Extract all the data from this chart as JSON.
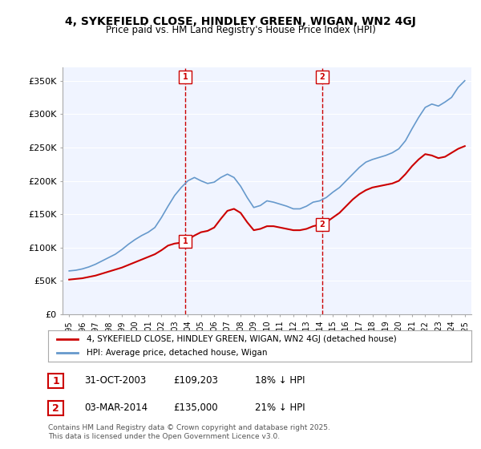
{
  "title": "4, SYKEFIELD CLOSE, HINDLEY GREEN, WIGAN, WN2 4GJ",
  "subtitle": "Price paid vs. HM Land Registry's House Price Index (HPI)",
  "ylabel_ticks": [
    "£0",
    "£50K",
    "£100K",
    "£150K",
    "£200K",
    "£250K",
    "£300K",
    "£350K"
  ],
  "ytick_values": [
    0,
    50000,
    100000,
    150000,
    200000,
    250000,
    300000,
    350000
  ],
  "ylim": [
    0,
    370000
  ],
  "legend_line1": "4, SYKEFIELD CLOSE, HINDLEY GREEN, WIGAN, WN2 4GJ (detached house)",
  "legend_line2": "HPI: Average price, detached house, Wigan",
  "marker1_date": "31-OCT-2003",
  "marker1_price": "£109,203",
  "marker1_hpi": "18% ↓ HPI",
  "marker2_date": "03-MAR-2014",
  "marker2_price": "£135,000",
  "marker2_hpi": "21% ↓ HPI",
  "footer": "Contains HM Land Registry data © Crown copyright and database right 2025.\nThis data is licensed under the Open Government Licence v3.0.",
  "line_color_red": "#cc0000",
  "line_color_blue": "#6699cc",
  "marker_vline_color": "#cc0000",
  "bg_color": "#ffffff",
  "plot_bg_color": "#f0f4ff",
  "grid_color": "#ffffff"
}
